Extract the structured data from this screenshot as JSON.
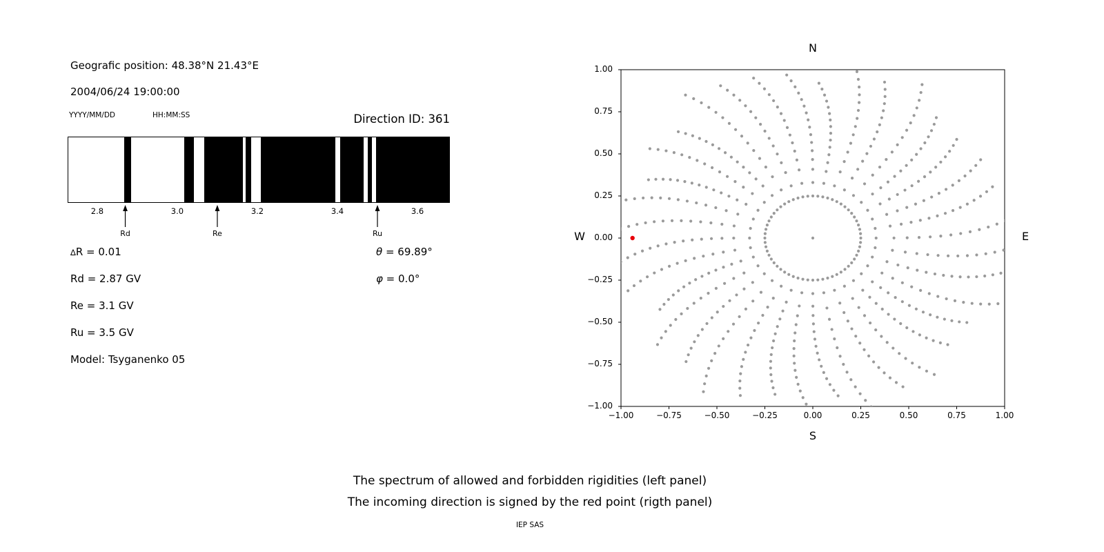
{
  "left_panel": {
    "geo_position": "Geografic position: 48.38°N 21.43°E",
    "datetime": "2004/06/24 19:00:00",
    "date_format": "YYYY/MM/DD",
    "time_format": "HH:MM:SS",
    "params_left": [
      "∆R = 0.01",
      "Rd = 2.87 GV",
      "Re = 3.1 GV",
      "Ru = 3.5 GV",
      "Model: Tsyganenko 05"
    ],
    "params_right": [
      "θ = 69.89°",
      "φ = 0.0°"
    ]
  },
  "caption": {
    "line1": "The spectrum of allowed and forbidden rigidities (left panel)",
    "line2": "The incoming direction is signed by the red point (rigth panel)",
    "credit": "IEP SAS"
  },
  "chart_data": [
    {
      "type": "heatmap",
      "title": "Direction ID: 361",
      "xlim": [
        2.726,
        3.681
      ],
      "xticks": [
        2.8,
        3.0,
        3.2,
        3.4,
        3.6
      ],
      "black_segments": [
        [
          2.867,
          2.883
        ],
        [
          3.017,
          3.041
        ],
        [
          3.066,
          3.164
        ],
        [
          3.171,
          3.185
        ],
        [
          3.209,
          3.395
        ],
        [
          3.407,
          3.467
        ],
        [
          3.476,
          3.488
        ],
        [
          3.497,
          3.681
        ]
      ],
      "arrows": [
        {
          "label": "Rd",
          "x": 2.87
        },
        {
          "label": "Re",
          "x": 3.1
        },
        {
          "label": "Ru",
          "x": 3.5
        }
      ],
      "colors": {
        "forbidden": "#000000",
        "allowed": "#ffffff"
      }
    },
    {
      "type": "scatter",
      "xlim": [
        -1,
        1
      ],
      "ylim": [
        -1,
        1
      ],
      "xticks": [
        -1,
        -0.75,
        -0.5,
        -0.25,
        0,
        0.25,
        0.5,
        0.75,
        1
      ],
      "yticks": [
        -1,
        -0.75,
        -0.5,
        -0.25,
        0,
        0.25,
        0.5,
        0.75,
        1
      ],
      "compass": {
        "top": "N",
        "bottom": "S",
        "left": "W",
        "right": "E"
      },
      "red_point": {
        "x": -0.94,
        "y": 0.0,
        "color": "#e8000b",
        "size": 3.2
      },
      "gray_dots": {
        "color": "#9a9a9a",
        "size": 2.1,
        "center_dot": true,
        "ring": {
          "radius": 0.25,
          "step_deg": 6
        },
        "spokes": {
          "count": 36,
          "r_start": 0.33,
          "r_end": 1.0,
          "r_end_jitter": 0.1,
          "points": 15,
          "power": 0.8,
          "curve_deg": 8
        }
      }
    }
  ]
}
